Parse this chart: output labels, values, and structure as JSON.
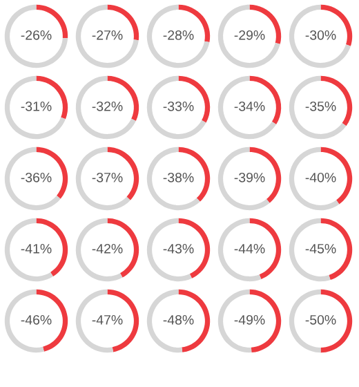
{
  "chart_data": [
    {
      "type": "donut",
      "categories": [
        null,
        null
      ],
      "values": [
        26,
        74
      ],
      "colors": [
        "#ee3a3f",
        "#d6d6d6"
      ],
      "annotations": [
        "-26%"
      ]
    },
    {
      "type": "donut",
      "categories": [
        null,
        null
      ],
      "values": [
        27,
        73
      ],
      "colors": [
        "#ee3a3f",
        "#d6d6d6"
      ],
      "annotations": [
        "-27%"
      ]
    },
    {
      "type": "donut",
      "categories": [
        null,
        null
      ],
      "values": [
        28,
        72
      ],
      "colors": [
        "#ee3a3f",
        "#d6d6d6"
      ],
      "annotations": [
        "-28%"
      ]
    },
    {
      "type": "donut",
      "categories": [
        null,
        null
      ],
      "values": [
        29,
        71
      ],
      "colors": [
        "#ee3a3f",
        "#d6d6d6"
      ],
      "annotations": [
        "-29%"
      ]
    },
    {
      "type": "donut",
      "categories": [
        null,
        null
      ],
      "values": [
        30,
        70
      ],
      "colors": [
        "#ee3a3f",
        "#d6d6d6"
      ],
      "annotations": [
        "-30%"
      ]
    },
    {
      "type": "donut",
      "categories": [
        null,
        null
      ],
      "values": [
        31,
        69
      ],
      "colors": [
        "#ee3a3f",
        "#d6d6d6"
      ],
      "annotations": [
        "-31%"
      ]
    },
    {
      "type": "donut",
      "categories": [
        null,
        null
      ],
      "values": [
        32,
        68
      ],
      "colors": [
        "#ee3a3f",
        "#d6d6d6"
      ],
      "annotations": [
        "-32%"
      ]
    },
    {
      "type": "donut",
      "categories": [
        null,
        null
      ],
      "values": [
        33,
        67
      ],
      "colors": [
        "#ee3a3f",
        "#d6d6d6"
      ],
      "annotations": [
        "-33%"
      ]
    },
    {
      "type": "donut",
      "categories": [
        null,
        null
      ],
      "values": [
        34,
        66
      ],
      "colors": [
        "#ee3a3f",
        "#d6d6d6"
      ],
      "annotations": [
        "-34%"
      ]
    },
    {
      "type": "donut",
      "categories": [
        null,
        null
      ],
      "values": [
        35,
        65
      ],
      "colors": [
        "#ee3a3f",
        "#d6d6d6"
      ],
      "annotations": [
        "-35%"
      ]
    },
    {
      "type": "donut",
      "categories": [
        null,
        null
      ],
      "values": [
        36,
        64
      ],
      "colors": [
        "#ee3a3f",
        "#d6d6d6"
      ],
      "annotations": [
        "-36%"
      ]
    },
    {
      "type": "donut",
      "categories": [
        null,
        null
      ],
      "values": [
        37,
        63
      ],
      "colors": [
        "#ee3a3f",
        "#d6d6d6"
      ],
      "annotations": [
        "-37%"
      ]
    },
    {
      "type": "donut",
      "categories": [
        null,
        null
      ],
      "values": [
        38,
        62
      ],
      "colors": [
        "#ee3a3f",
        "#d6d6d6"
      ],
      "annotations": [
        "-38%"
      ]
    },
    {
      "type": "donut",
      "categories": [
        null,
        null
      ],
      "values": [
        39,
        61
      ],
      "colors": [
        "#ee3a3f",
        "#d6d6d6"
      ],
      "annotations": [
        "-39%"
      ]
    },
    {
      "type": "donut",
      "categories": [
        null,
        null
      ],
      "values": [
        40,
        60
      ],
      "colors": [
        "#ee3a3f",
        "#d6d6d6"
      ],
      "annotations": [
        "-40%"
      ]
    },
    {
      "type": "donut",
      "categories": [
        null,
        null
      ],
      "values": [
        41,
        59
      ],
      "colors": [
        "#ee3a3f",
        "#d6d6d6"
      ],
      "annotations": [
        "-41%"
      ]
    },
    {
      "type": "donut",
      "categories": [
        null,
        null
      ],
      "values": [
        42,
        58
      ],
      "colors": [
        "#ee3a3f",
        "#d6d6d6"
      ],
      "annotations": [
        "-42%"
      ]
    },
    {
      "type": "donut",
      "categories": [
        null,
        null
      ],
      "values": [
        43,
        57
      ],
      "colors": [
        "#ee3a3f",
        "#d6d6d6"
      ],
      "annotations": [
        "-43%"
      ]
    },
    {
      "type": "donut",
      "categories": [
        null,
        null
      ],
      "values": [
        44,
        56
      ],
      "colors": [
        "#ee3a3f",
        "#d6d6d6"
      ],
      "annotations": [
        "-44%"
      ]
    },
    {
      "type": "donut",
      "categories": [
        null,
        null
      ],
      "values": [
        45,
        55
      ],
      "colors": [
        "#ee3a3f",
        "#d6d6d6"
      ],
      "annotations": [
        "-45%"
      ]
    },
    {
      "type": "donut",
      "categories": [
        null,
        null
      ],
      "values": [
        46,
        54
      ],
      "colors": [
        "#ee3a3f",
        "#d6d6d6"
      ],
      "annotations": [
        "-46%"
      ]
    },
    {
      "type": "donut",
      "categories": [
        null,
        null
      ],
      "values": [
        47,
        53
      ],
      "colors": [
        "#ee3a3f",
        "#d6d6d6"
      ],
      "annotations": [
        "-47%"
      ]
    },
    {
      "type": "donut",
      "categories": [
        null,
        null
      ],
      "values": [
        48,
        52
      ],
      "colors": [
        "#ee3a3f",
        "#d6d6d6"
      ],
      "annotations": [
        "-48%"
      ]
    },
    {
      "type": "donut",
      "categories": [
        null,
        null
      ],
      "values": [
        49,
        51
      ],
      "colors": [
        "#ee3a3f",
        "#d6d6d6"
      ],
      "annotations": [
        "-49%"
      ]
    },
    {
      "type": "donut",
      "categories": [
        null,
        null
      ],
      "values": [
        50,
        50
      ],
      "colors": [
        "#ee3a3f",
        "#d6d6d6"
      ],
      "annotations": [
        "-50%"
      ]
    }
  ]
}
